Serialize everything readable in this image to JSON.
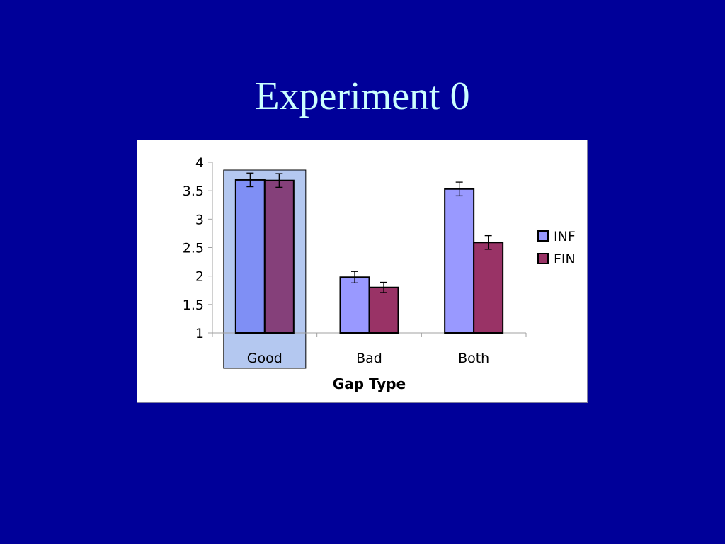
{
  "slide": {
    "title": "Experiment 0"
  },
  "chart_data": {
    "type": "bar",
    "categories": [
      "Good",
      "Bad",
      "Both"
    ],
    "highlighted_category": "Good",
    "xlabel": "Gap Type",
    "ylabel": "",
    "ylim": [
      1,
      4
    ],
    "yticks": [
      1,
      1.5,
      2,
      2.5,
      3,
      3.5,
      4
    ],
    "grid": false,
    "legend_position": "right",
    "series": [
      {
        "name": "INF",
        "values": [
          3.69,
          1.98,
          3.53
        ],
        "errors": [
          0.12,
          0.1,
          0.12
        ],
        "color": "#9999ff"
      },
      {
        "name": "FIN",
        "values": [
          3.68,
          1.8,
          2.59
        ],
        "errors": [
          0.12,
          0.09,
          0.12
        ],
        "color": "#993366"
      }
    ],
    "highlight_color": "#b4c8f0"
  }
}
